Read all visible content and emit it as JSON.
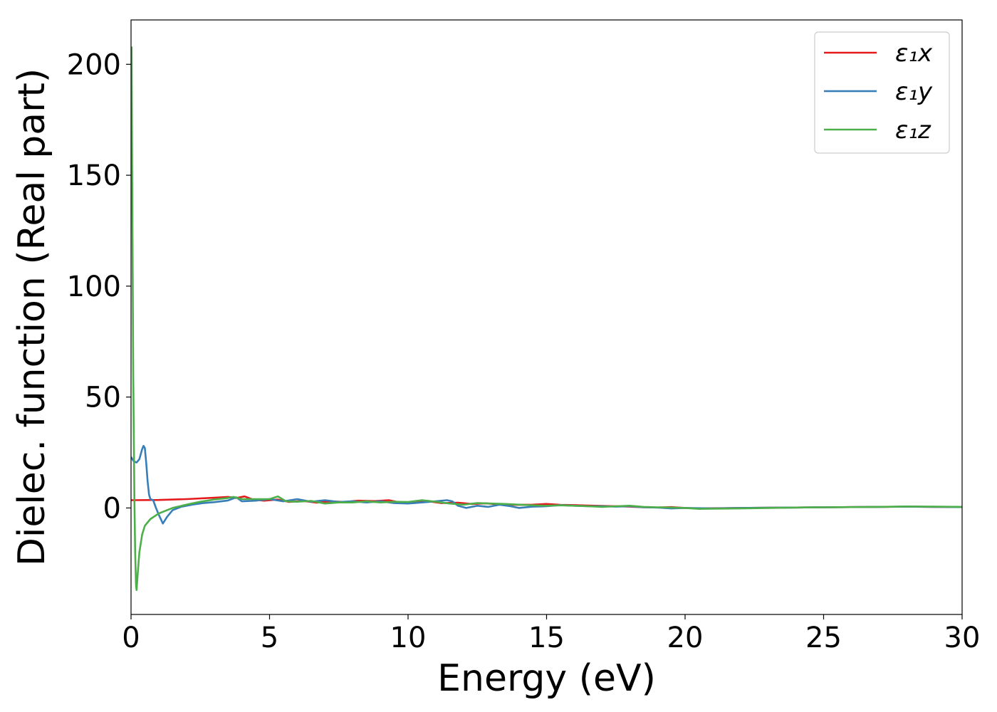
{
  "chart_data": {
    "type": "line",
    "xlabel": "Energy (eV)",
    "ylabel": "Dielec. function (Real part)",
    "xlim": [
      0,
      30
    ],
    "ylim": [
      -48,
      220
    ],
    "xticks": [
      0,
      5,
      10,
      15,
      20,
      25,
      30
    ],
    "yticks": [
      0,
      50,
      100,
      150,
      200
    ],
    "grid": false,
    "legend_position": "top-right",
    "series": [
      {
        "name": "ε₁x",
        "color": "#e41a1c",
        "points": [
          [
            0,
            3.5
          ],
          [
            1,
            3.6
          ],
          [
            2,
            4.0
          ],
          [
            3,
            4.6
          ],
          [
            3.5,
            5.0
          ],
          [
            3.8,
            4.5
          ],
          [
            4.1,
            5.2
          ],
          [
            4.4,
            3.8
          ],
          [
            4.8,
            3.3
          ],
          [
            5.3,
            3.8
          ],
          [
            5.7,
            2.7
          ],
          [
            6.2,
            3.2
          ],
          [
            6.7,
            2.4
          ],
          [
            7.2,
            3.0
          ],
          [
            7.7,
            2.7
          ],
          [
            8.2,
            3.3
          ],
          [
            8.8,
            3.1
          ],
          [
            9.3,
            3.5
          ],
          [
            9.7,
            2.5
          ],
          [
            10.2,
            2.7
          ],
          [
            10.7,
            3.1
          ],
          [
            11.2,
            2.2
          ],
          [
            11.8,
            2.4
          ],
          [
            12.3,
            1.8
          ],
          [
            12.8,
            2.1
          ],
          [
            13.3,
            1.6
          ],
          [
            13.9,
            1.4
          ],
          [
            14.5,
            1.5
          ],
          [
            15.0,
            1.8
          ],
          [
            15.5,
            1.4
          ],
          [
            16.0,
            1.3
          ],
          [
            16.5,
            1.1
          ],
          [
            17.0,
            0.9
          ],
          [
            17.5,
            0.8
          ],
          [
            18.0,
            0.6
          ],
          [
            18.5,
            0.3
          ],
          [
            19.0,
            0.2
          ],
          [
            19.5,
            0.4
          ],
          [
            20.0,
            0.0
          ],
          [
            20.5,
            -0.2
          ],
          [
            21.0,
            -0.1
          ],
          [
            22.0,
            0.0
          ],
          [
            23.0,
            0.1
          ],
          [
            24.0,
            0.2
          ],
          [
            25.0,
            0.3
          ],
          [
            26.0,
            0.4
          ],
          [
            27.0,
            0.5
          ],
          [
            28.0,
            0.6
          ],
          [
            29.0,
            0.5
          ],
          [
            30.0,
            0.4
          ]
        ]
      },
      {
        "name": "ε₁y",
        "color": "#377eb8",
        "points": [
          [
            0,
            23
          ],
          [
            0.1,
            21
          ],
          [
            0.2,
            20.5
          ],
          [
            0.3,
            22
          ],
          [
            0.4,
            26.5
          ],
          [
            0.45,
            28
          ],
          [
            0.5,
            27
          ],
          [
            0.55,
            20
          ],
          [
            0.6,
            12
          ],
          [
            0.65,
            6
          ],
          [
            0.7,
            4
          ],
          [
            0.8,
            3.5
          ],
          [
            0.9,
            0
          ],
          [
            1.0,
            -3
          ],
          [
            1.15,
            -7
          ],
          [
            1.3,
            -4
          ],
          [
            1.5,
            -1
          ],
          [
            1.8,
            0.5
          ],
          [
            2.2,
            1.5
          ],
          [
            2.6,
            2.2
          ],
          [
            3.0,
            2.6
          ],
          [
            3.5,
            3.4
          ],
          [
            3.8,
            4.8
          ],
          [
            4.0,
            3.0
          ],
          [
            4.5,
            3.3
          ],
          [
            5.0,
            4.0
          ],
          [
            5.5,
            3.0
          ],
          [
            6.0,
            4.0
          ],
          [
            6.5,
            2.8
          ],
          [
            7.0,
            3.5
          ],
          [
            7.5,
            2.7
          ],
          [
            8.0,
            3.0
          ],
          [
            8.5,
            2.5
          ],
          [
            9.0,
            3.0
          ],
          [
            9.5,
            2.2
          ],
          [
            10.0,
            2.0
          ],
          [
            10.5,
            2.5
          ],
          [
            11.0,
            3.0
          ],
          [
            11.4,
            3.5
          ],
          [
            11.6,
            3.0
          ],
          [
            11.8,
            1.0
          ],
          [
            12.1,
            0.0
          ],
          [
            12.5,
            1.0
          ],
          [
            12.9,
            0.5
          ],
          [
            13.3,
            1.5
          ],
          [
            13.7,
            0.8
          ],
          [
            14.0,
            0.0
          ],
          [
            14.5,
            0.6
          ],
          [
            15.0,
            0.8
          ],
          [
            15.5,
            1.3
          ],
          [
            16.0,
            1.0
          ],
          [
            16.5,
            0.8
          ],
          [
            17.0,
            0.8
          ],
          [
            17.5,
            0.6
          ],
          [
            18.0,
            0.8
          ],
          [
            18.5,
            0.3
          ],
          [
            19.0,
            0.2
          ],
          [
            19.5,
            -0.2
          ],
          [
            20.0,
            0.0
          ],
          [
            21.0,
            -0.2
          ],
          [
            22.0,
            0.0
          ],
          [
            23.0,
            0.1
          ],
          [
            24.0,
            0.2
          ],
          [
            25.0,
            0.3
          ],
          [
            26.0,
            0.4
          ],
          [
            27.0,
            0.5
          ],
          [
            28.0,
            0.6
          ],
          [
            29.0,
            0.5
          ],
          [
            30.0,
            0.4
          ]
        ]
      },
      {
        "name": "ε₁z",
        "color": "#4daf4a",
        "points": [
          [
            0.02,
            208
          ],
          [
            0.05,
            130
          ],
          [
            0.08,
            60
          ],
          [
            0.12,
            5
          ],
          [
            0.15,
            -20
          ],
          [
            0.18,
            -35
          ],
          [
            0.2,
            -37
          ],
          [
            0.24,
            -30
          ],
          [
            0.3,
            -20
          ],
          [
            0.4,
            -12
          ],
          [
            0.5,
            -8
          ],
          [
            0.7,
            -5
          ],
          [
            1.0,
            -2.5
          ],
          [
            1.5,
            0
          ],
          [
            2.0,
            1.5
          ],
          [
            2.5,
            2.8
          ],
          [
            3.0,
            3.8
          ],
          [
            3.5,
            4.5
          ],
          [
            3.7,
            5.0
          ],
          [
            4.0,
            4.0
          ],
          [
            4.5,
            4.0
          ],
          [
            5.0,
            4.0
          ],
          [
            5.3,
            5.2
          ],
          [
            5.6,
            3.0
          ],
          [
            6.0,
            2.8
          ],
          [
            6.5,
            3.2
          ],
          [
            7.0,
            2.0
          ],
          [
            7.5,
            2.5
          ],
          [
            8.0,
            2.5
          ],
          [
            8.5,
            3.0
          ],
          [
            9.0,
            2.5
          ],
          [
            9.5,
            2.8
          ],
          [
            10.0,
            2.7
          ],
          [
            10.5,
            3.5
          ],
          [
            11.0,
            2.8
          ],
          [
            11.5,
            2.0
          ],
          [
            12.0,
            1.5
          ],
          [
            12.5,
            2.2
          ],
          [
            13.0,
            2.0
          ],
          [
            13.5,
            1.8
          ],
          [
            14.0,
            1.5
          ],
          [
            14.5,
            1.2
          ],
          [
            15.0,
            1.0
          ],
          [
            15.5,
            1.2
          ],
          [
            16.0,
            1.0
          ],
          [
            16.5,
            0.8
          ],
          [
            17.0,
            0.5
          ],
          [
            17.5,
            0.8
          ],
          [
            18.0,
            1.0
          ],
          [
            18.5,
            0.5
          ],
          [
            19.0,
            0.3
          ],
          [
            19.5,
            0.2
          ],
          [
            20.0,
            0.0
          ],
          [
            20.5,
            -0.4
          ],
          [
            21.0,
            -0.3
          ],
          [
            22.0,
            -0.2
          ],
          [
            23.0,
            0.0
          ],
          [
            24.0,
            0.2
          ],
          [
            25.0,
            0.3
          ],
          [
            26.0,
            0.4
          ],
          [
            27.0,
            0.5
          ],
          [
            28.0,
            0.7
          ],
          [
            29.0,
            0.6
          ],
          [
            30.0,
            0.5
          ]
        ]
      }
    ]
  }
}
